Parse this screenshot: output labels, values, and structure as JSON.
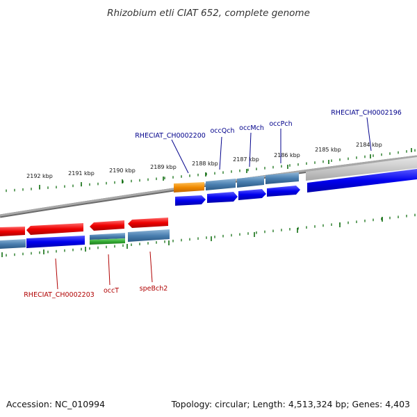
{
  "title": "Rhizobium etli CIAT 652, complete genome",
  "accession_text": "Accession: NC_010994",
  "summary_text": "Topology: circular; Length: 4,513,324 bp; Genes: 4,403",
  "colors": {
    "label_top": "#00008b",
    "label_bottom": "#b00000",
    "tick": "#006400",
    "arrow_blue": "#0000ee",
    "arrow_red": "#ee0000",
    "cds_steel": "#4a7fb0",
    "cds_orange": "#f08a00",
    "cds_green": "#33aa33",
    "backbone": "#808080",
    "highlight_gray": "#c8c8c8"
  },
  "ticks_top": [
    {
      "label": "2192 kbp"
    },
    {
      "label": "2191 kbp"
    },
    {
      "label": "2190 kbp"
    },
    {
      "label": "2189 kbp"
    },
    {
      "label": "2188 kbp"
    },
    {
      "label": "2187 kbp"
    },
    {
      "label": "2186 kbp"
    },
    {
      "label": "2185 kbp"
    },
    {
      "label": "2184 kbp"
    }
  ],
  "labels_top": [
    {
      "name": "RHECIAT_CH0002200"
    },
    {
      "name": "occQch"
    },
    {
      "name": "occMch"
    },
    {
      "name": "occPch"
    },
    {
      "name": "RHECIAT_CH0002196"
    }
  ],
  "labels_bottom": [
    {
      "name": "RHECIAT_CH0002203"
    },
    {
      "name": "occT"
    },
    {
      "name": "speBch2"
    }
  ]
}
